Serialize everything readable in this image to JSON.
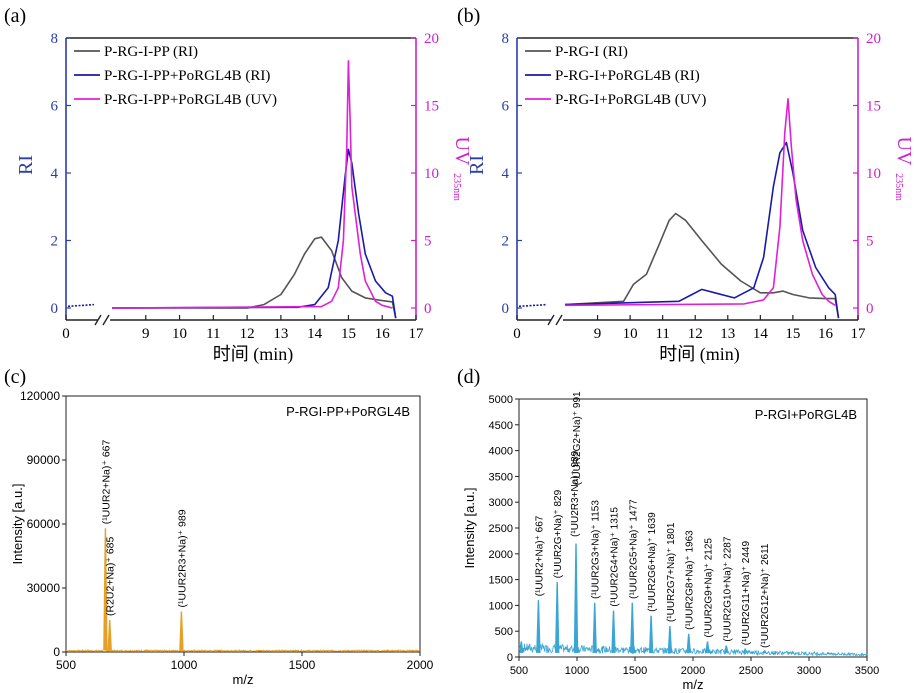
{
  "panels": {
    "a": {
      "letter": "(a)"
    },
    "b": {
      "letter": "(b)"
    },
    "c": {
      "letter": "(c)"
    },
    "d": {
      "letter": "(d)"
    }
  },
  "colors": {
    "gray": "#555555",
    "blue": "#1a1aa8",
    "magenta": "#e020d8",
    "orange": "#e6a028",
    "cyan": "#3aa6d4",
    "axis_blue": "#2b3ea8"
  },
  "chart_data": [
    {
      "id": "a",
      "type": "line",
      "xlabel": "时间 (min)",
      "ylabel_left": "RI",
      "ylabel_right": "UV",
      "ylabel_right_sub": "235nm",
      "xlim": [
        8,
        17
      ],
      "ylim_left": [
        0,
        8
      ],
      "ylim_right": [
        0,
        20
      ],
      "x_ticks": [
        "0",
        "9",
        "10",
        "11",
        "12",
        "13",
        "14",
        "15",
        "16",
        "17"
      ],
      "y_ticks_left": [
        "0",
        "2",
        "4",
        "6",
        "8"
      ],
      "y_ticks_right": [
        "0",
        "5",
        "10",
        "15",
        "20"
      ],
      "legend_position": "top-left",
      "series": [
        {
          "name": "P-RG-I-PP (RI)",
          "color": "gray",
          "axis": "left",
          "x": [
            8.0,
            12.0,
            12.5,
            13.0,
            13.4,
            13.7,
            14.0,
            14.2,
            14.5,
            14.8,
            15.1,
            15.5,
            16.0,
            16.3,
            16.4
          ],
          "y": [
            0.0,
            0.0,
            0.1,
            0.4,
            1.0,
            1.6,
            2.05,
            2.1,
            1.7,
            0.9,
            0.5,
            0.3,
            0.22,
            0.18,
            -0.3
          ]
        },
        {
          "name": "P-RG-I-PP+PoRGL4B (RI)",
          "color": "blue",
          "axis": "left",
          "x": [
            8.0,
            13.5,
            14.0,
            14.4,
            14.7,
            14.9,
            15.0,
            15.1,
            15.3,
            15.5,
            15.8,
            16.1,
            16.3,
            16.4
          ],
          "y": [
            0.0,
            0.02,
            0.1,
            0.6,
            2.0,
            3.9,
            4.7,
            4.3,
            2.8,
            1.6,
            0.8,
            0.45,
            0.35,
            -0.3
          ]
        },
        {
          "name": "P-RG-I-PP+PoRGL4B (UV)",
          "color": "magenta",
          "axis": "right",
          "x": [
            8.0,
            14.2,
            14.5,
            14.7,
            14.85,
            14.95,
            15.0,
            15.05,
            15.1,
            15.2,
            15.35,
            15.5,
            15.8,
            16.0,
            16.3
          ],
          "y": [
            0.0,
            0.1,
            0.5,
            1.5,
            5.0,
            12.0,
            18.3,
            14.0,
            9.0,
            7.0,
            4.0,
            2.0,
            0.5,
            0.2,
            0.0
          ]
        }
      ]
    },
    {
      "id": "b",
      "type": "line",
      "xlabel": "时间 (min)",
      "ylabel_left": "RI",
      "ylabel_right": "UV",
      "ylabel_right_sub": "235nm",
      "xlim": [
        8,
        17
      ],
      "ylim_left": [
        0,
        8
      ],
      "ylim_right": [
        0,
        20
      ],
      "x_ticks": [
        "0",
        "9",
        "10",
        "11",
        "12",
        "13",
        "14",
        "15",
        "16",
        "17"
      ],
      "y_ticks_left": [
        "0",
        "2",
        "4",
        "6",
        "8"
      ],
      "y_ticks_right": [
        "0",
        "5",
        "10",
        "15",
        "20"
      ],
      "legend_position": "top-left",
      "series": [
        {
          "name": "P-RG-I (RI)",
          "color": "gray",
          "axis": "left",
          "x": [
            8.0,
            9.8,
            10.1,
            10.5,
            10.9,
            11.2,
            11.4,
            11.7,
            12.2,
            12.8,
            13.4,
            14.0,
            14.4,
            14.7,
            15.0,
            15.5,
            16.0,
            16.3,
            16.4
          ],
          "y": [
            0.1,
            0.2,
            0.7,
            1.0,
            1.9,
            2.6,
            2.8,
            2.6,
            2.0,
            1.3,
            0.8,
            0.45,
            0.45,
            0.5,
            0.4,
            0.3,
            0.28,
            0.28,
            -0.3
          ]
        },
        {
          "name": "P-RG-I+PoRGL4B (RI)",
          "color": "blue",
          "axis": "left",
          "x": [
            8.0,
            11.5,
            11.9,
            12.2,
            12.6,
            13.2,
            13.8,
            14.1,
            14.4,
            14.6,
            14.8,
            15.0,
            15.3,
            15.7,
            16.1,
            16.3,
            16.4
          ],
          "y": [
            0.1,
            0.2,
            0.4,
            0.55,
            0.45,
            0.3,
            0.6,
            1.5,
            3.6,
            4.6,
            4.9,
            4.0,
            2.3,
            1.2,
            0.6,
            0.4,
            -0.3
          ]
        },
        {
          "name": "P-RG-I+PoRGL4B (UV)",
          "color": "magenta",
          "axis": "right",
          "x": [
            8.0,
            13.5,
            14.1,
            14.4,
            14.6,
            14.75,
            14.85,
            14.95,
            15.1,
            15.3,
            15.6,
            15.9,
            16.1,
            16.3
          ],
          "y": [
            0.2,
            0.3,
            0.6,
            1.5,
            6.0,
            13.0,
            15.5,
            12.0,
            8.0,
            5.0,
            2.5,
            1.0,
            0.5,
            0.2
          ]
        }
      ]
    },
    {
      "id": "c",
      "type": "line",
      "title": "P-RGI-PP+PoRGL4B",
      "xlabel": "m/z",
      "ylabel": "Intensity [a.u.]",
      "xlim": [
        500,
        2000
      ],
      "ylim": [
        0,
        120000
      ],
      "x_ticks": [
        "500",
        "1000",
        "1500",
        "2000"
      ],
      "y_ticks": [
        "0",
        "30000",
        "60000",
        "90000",
        "120000"
      ],
      "series": [
        {
          "name": "",
          "color": "orange",
          "peaks": [
            [
              667,
              58000
            ],
            [
              685,
              15000
            ],
            [
              989,
              19000
            ],
            [
              840,
              900
            ],
            [
              1150,
              700
            ],
            [
              1320,
              500
            ],
            [
              1480,
              400
            ]
          ],
          "baseline": 700
        }
      ],
      "annotations": [
        {
          "text": "(¹UUR2+Na)⁺ 667",
          "x": 667,
          "y": 58000
        },
        {
          "text": "(R2U2+Na)⁺ 685",
          "x": 685,
          "y": 15000
        },
        {
          "text": "(¹UUR2R3+Na)⁺ 989",
          "x": 989,
          "y": 19000
        }
      ]
    },
    {
      "id": "d",
      "type": "line",
      "title": "P-RGI+PoRGL4B",
      "xlabel": "m/z",
      "ylabel": "Intensity [a.u.]",
      "xlim": [
        500,
        3500
      ],
      "ylim": [
        0,
        5000
      ],
      "x_ticks": [
        "500",
        "1000",
        "1500",
        "2000",
        "2500",
        "3000",
        "3500"
      ],
      "y_ticks": [
        "0",
        "500",
        "1000",
        "1500",
        "2000",
        "2500",
        "3000",
        "3500",
        "4000",
        "4500",
        "5000"
      ],
      "series": [
        {
          "name": "",
          "color": "cyan",
          "peaks": [
            [
              520,
              300
            ],
            [
              667,
              1100
            ],
            [
              829,
              1450
            ],
            [
              991,
              2200
            ],
            [
              1153,
              1050
            ],
            [
              1315,
              900
            ],
            [
              1477,
              1050
            ],
            [
              1639,
              800
            ],
            [
              1801,
              600
            ],
            [
              1963,
              450
            ],
            [
              2125,
              300
            ],
            [
              2287,
              220
            ],
            [
              2449,
              150
            ],
            [
              2611,
              100
            ]
          ],
          "baseline": 80
        }
      ],
      "annotations": [
        {
          "text": "(¹UUR2+Na)⁺ 667",
          "x": 667,
          "y": 1100
        },
        {
          "text": "(¹UUR2G+Na)⁺ 829",
          "x": 829,
          "y": 1450
        },
        {
          "text": "(¹UU2R3+Na)⁺ 989",
          "x": 975,
          "y": 2250
        },
        {
          "text": "(¹UUR2G2+Na)⁺ 991",
          "x": 991,
          "y": 3250
        },
        {
          "text": "(¹UUR2G3+Na)⁺ 1153",
          "x": 1153,
          "y": 1050
        },
        {
          "text": "(¹UUR2G4+Na)⁺ 1315",
          "x": 1315,
          "y": 900
        },
        {
          "text": "(¹UUR2G5+Na)⁺ 1477",
          "x": 1477,
          "y": 1050
        },
        {
          "text": "(¹UUR2G6+Na)⁺ 1639",
          "x": 1639,
          "y": 800
        },
        {
          "text": "(¹UUR2G7+Na)⁺ 1801",
          "x": 1801,
          "y": 600
        },
        {
          "text": "(¹UUR2G8+Na)⁺ 1963",
          "x": 1963,
          "y": 450
        },
        {
          "text": "(¹UUR2G9+Na)⁺ 2125",
          "x": 2125,
          "y": 300
        },
        {
          "text": "(¹UUR2G10+Na)⁺ 2287",
          "x": 2287,
          "y": 220
        },
        {
          "text": "(¹UUR2G11+Na)⁺ 2449",
          "x": 2449,
          "y": 150
        },
        {
          "text": "(¹UUR2G12+Na)⁺ 2611",
          "x": 2611,
          "y": 100
        }
      ]
    }
  ]
}
